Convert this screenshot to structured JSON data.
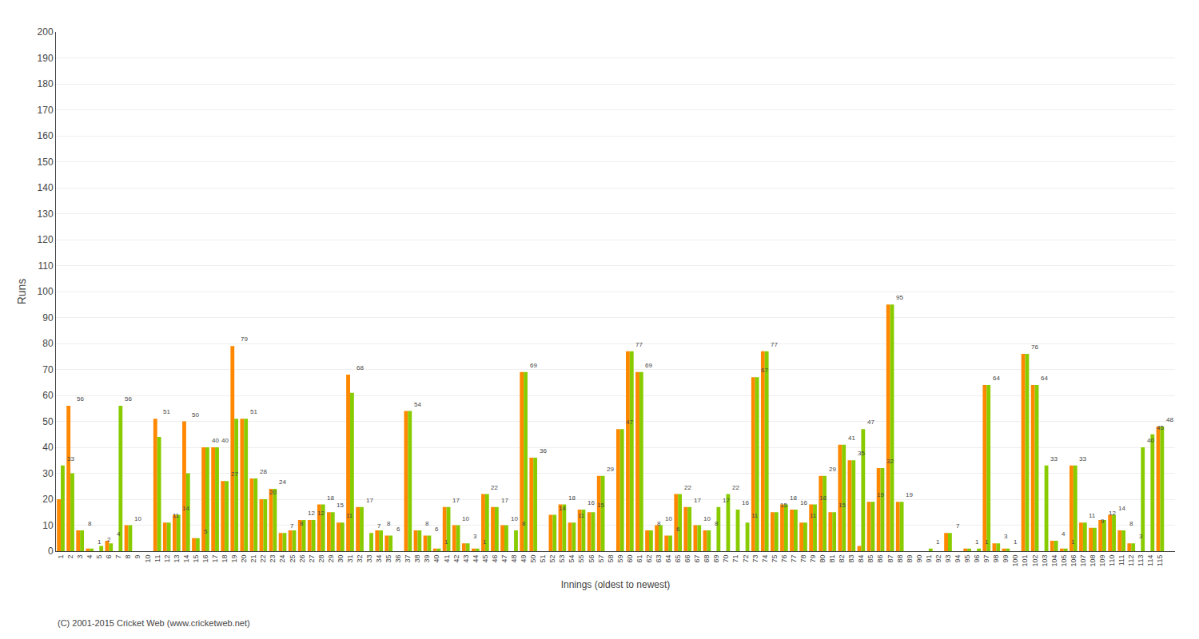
{
  "chart_data": {
    "type": "bar",
    "xlabel": "Innings (oldest to newest)",
    "ylabel": "Runs",
    "categories": [
      "1",
      "2",
      "3",
      "4",
      "5",
      "6",
      "7",
      "8",
      "9",
      "10",
      "11",
      "12",
      "13",
      "14",
      "15",
      "16",
      "17",
      "18",
      "19",
      "20",
      "21",
      "22",
      "23",
      "24",
      "25",
      "26",
      "27",
      "28",
      "29",
      "30",
      "31",
      "32",
      "33",
      "34",
      "35",
      "36",
      "37",
      "38",
      "39",
      "40",
      "41",
      "42",
      "43",
      "44",
      "45",
      "46",
      "47",
      "48",
      "49",
      "50",
      "51",
      "52",
      "53",
      "54",
      "55",
      "56",
      "57",
      "58",
      "59",
      "60",
      "61",
      "62",
      "63",
      "64",
      "65",
      "66",
      "67",
      "68",
      "69",
      "70",
      "71",
      "72",
      "73",
      "74",
      "75",
      "76",
      "77",
      "78",
      "79",
      "80",
      "81",
      "82",
      "83",
      "84",
      "85",
      "86",
      "87",
      "88",
      "89",
      "90",
      "91",
      "92",
      "93",
      "94",
      "95",
      "96",
      "97",
      "98",
      "99",
      "100",
      "101",
      "102",
      "103",
      "104",
      "105",
      "106",
      "107",
      "108",
      "109",
      "110",
      "111",
      "112",
      "113",
      "114",
      "115"
    ],
    "series": [
      {
        "color": "#ff8800",
        "values": [
          20,
          56,
          8,
          1,
          0,
          4,
          0,
          10,
          0,
          0,
          51,
          11,
          14,
          50,
          5,
          40,
          40,
          27,
          79,
          51,
          28,
          20,
          24,
          7,
          8,
          12,
          12,
          18,
          15,
          11,
          68,
          17,
          0,
          8,
          6,
          0,
          54,
          8,
          6,
          1,
          17,
          10,
          3,
          1,
          22,
          17,
          10,
          0,
          69,
          36,
          0,
          14,
          18,
          11,
          16,
          15,
          29,
          0,
          47,
          77,
          69,
          8,
          10,
          6,
          22,
          17,
          10,
          8,
          0,
          0,
          0,
          0,
          67,
          77,
          15,
          18,
          16,
          11,
          18,
          29,
          15,
          41,
          35,
          2,
          19,
          32,
          95,
          19,
          0,
          0,
          0,
          0,
          7,
          0,
          1,
          0,
          64,
          3,
          1,
          0,
          76,
          64,
          0,
          4,
          1,
          33,
          11,
          9,
          12,
          14,
          8,
          3,
          0,
          0,
          48
        ]
      },
      {
        "color": "#88cc00",
        "values": [
          33,
          30,
          8,
          1,
          2,
          3,
          56,
          10,
          0,
          0,
          44,
          11,
          14,
          30,
          5,
          40,
          40,
          27,
          51,
          51,
          28,
          20,
          24,
          7,
          8,
          12,
          12,
          18,
          15,
          11,
          61,
          17,
          7,
          8,
          6,
          0,
          54,
          8,
          6,
          1,
          17,
          10,
          3,
          1,
          22,
          17,
          10,
          8,
          69,
          36,
          0,
          14,
          18,
          11,
          16,
          15,
          29,
          0,
          47,
          77,
          69,
          8,
          10,
          6,
          22,
          17,
          10,
          8,
          17,
          22,
          16,
          11,
          67,
          77,
          15,
          18,
          16,
          11,
          18,
          29,
          15,
          41,
          35,
          47,
          19,
          32,
          95,
          19,
          0,
          0,
          1,
          0,
          7,
          0,
          1,
          1,
          64,
          3,
          1,
          0,
          76,
          64,
          33,
          4,
          1,
          33,
          11,
          9,
          12,
          14,
          8,
          3,
          40,
          45,
          48
        ]
      }
    ],
    "ylim": [
      0,
      200
    ],
    "yticks": [
      0,
      10,
      20,
      30,
      40,
      50,
      60,
      70,
      80,
      90,
      100,
      110,
      120,
      130,
      140,
      150,
      160,
      170,
      180,
      190,
      200
    ],
    "grid": true,
    "annotations": [
      {
        "text": "(C) 2001-2015 Cricket Web (www.cricketweb.net)"
      },
      {
        "category": "1",
        "text": "33"
      },
      {
        "category": "2",
        "text": "56"
      },
      {
        "category": "3",
        "text": "8"
      },
      {
        "category": "4",
        "text": "1"
      },
      {
        "category": "5",
        "text": "2"
      },
      {
        "category": "6",
        "text": "4"
      },
      {
        "category": "7",
        "text": "56"
      },
      {
        "category": "8",
        "text": "10"
      },
      {
        "category": "11",
        "text": "51"
      },
      {
        "category": "12",
        "text": "11"
      },
      {
        "category": "13",
        "text": "14"
      },
      {
        "category": "14",
        "text": "50"
      },
      {
        "category": "15",
        "text": "5"
      },
      {
        "category": "16",
        "text": "40"
      },
      {
        "category": "17",
        "text": "40"
      },
      {
        "category": "18",
        "text": "27"
      },
      {
        "category": "19",
        "text": "79"
      },
      {
        "category": "20",
        "text": "51"
      },
      {
        "category": "21",
        "text": "28"
      },
      {
        "category": "22",
        "text": "20"
      },
      {
        "category": "23",
        "text": "24"
      },
      {
        "category": "24",
        "text": "7"
      },
      {
        "category": "25",
        "text": "8"
      },
      {
        "category": "26",
        "text": "12"
      },
      {
        "category": "27",
        "text": "12"
      },
      {
        "category": "28",
        "text": "18"
      },
      {
        "category": "29",
        "text": "15"
      },
      {
        "category": "30",
        "text": "11"
      },
      {
        "category": "31",
        "text": "68"
      },
      {
        "category": "32",
        "text": "17"
      },
      {
        "category": "33",
        "text": "7"
      },
      {
        "category": "34",
        "text": "8"
      },
      {
        "category": "35",
        "text": "6"
      },
      {
        "category": "37",
        "text": "54"
      },
      {
        "category": "38",
        "text": "8"
      },
      {
        "category": "39",
        "text": "6"
      },
      {
        "category": "40",
        "text": "1"
      },
      {
        "category": "41",
        "text": "17"
      },
      {
        "category": "42",
        "text": "10"
      },
      {
        "category": "43",
        "text": "3"
      },
      {
        "category": "44",
        "text": "1"
      },
      {
        "category": "45",
        "text": "22"
      },
      {
        "category": "46",
        "text": "17"
      },
      {
        "category": "47",
        "text": "10"
      },
      {
        "category": "48",
        "text": "8"
      },
      {
        "category": "49",
        "text": "69"
      },
      {
        "category": "50",
        "text": "36"
      },
      {
        "category": "52",
        "text": "14"
      },
      {
        "category": "53",
        "text": "18"
      },
      {
        "category": "54",
        "text": "11"
      },
      {
        "category": "55",
        "text": "16"
      },
      {
        "category": "56",
        "text": "15"
      },
      {
        "category": "57",
        "text": "29"
      },
      {
        "category": "59",
        "text": "47"
      },
      {
        "category": "60",
        "text": "77"
      },
      {
        "category": "61",
        "text": "69"
      },
      {
        "category": "62",
        "text": "8"
      },
      {
        "category": "63",
        "text": "10"
      },
      {
        "category": "64",
        "text": "6"
      },
      {
        "category": "65",
        "text": "22"
      },
      {
        "category": "66",
        "text": "17"
      },
      {
        "category": "67",
        "text": "10"
      },
      {
        "category": "68",
        "text": "8"
      },
      {
        "category": "69",
        "text": "17"
      },
      {
        "category": "70",
        "text": "22"
      },
      {
        "category": "71",
        "text": "16"
      },
      {
        "category": "72",
        "text": "11"
      },
      {
        "category": "73",
        "text": "67"
      },
      {
        "category": "74",
        "text": "77"
      },
      {
        "category": "75",
        "text": "15"
      },
      {
        "category": "76",
        "text": "18"
      },
      {
        "category": "77",
        "text": "16"
      },
      {
        "category": "78",
        "text": "11"
      },
      {
        "category": "79",
        "text": "18"
      },
      {
        "category": "80",
        "text": "29"
      },
      {
        "category": "81",
        "text": "15"
      },
      {
        "category": "82",
        "text": "41"
      },
      {
        "category": "83",
        "text": "35"
      },
      {
        "category": "84",
        "text": "47"
      },
      {
        "category": "85",
        "text": "19"
      },
      {
        "category": "86",
        "text": "32"
      },
      {
        "category": "87",
        "text": "95"
      },
      {
        "category": "88",
        "text": "19"
      },
      {
        "category": "91",
        "text": "1"
      },
      {
        "category": "93",
        "text": "7"
      },
      {
        "category": "95",
        "text": "1"
      },
      {
        "category": "96",
        "text": "1"
      },
      {
        "category": "97",
        "text": "64"
      },
      {
        "category": "98",
        "text": "3"
      },
      {
        "category": "99",
        "text": "1"
      },
      {
        "category": "101",
        "text": "76"
      },
      {
        "category": "102",
        "text": "64"
      },
      {
        "category": "103",
        "text": "33"
      },
      {
        "category": "104",
        "text": "4"
      },
      {
        "category": "105",
        "text": "1"
      },
      {
        "category": "106",
        "text": "33"
      },
      {
        "category": "107",
        "text": "11"
      },
      {
        "category": "108",
        "text": "9"
      },
      {
        "category": "109",
        "text": "12"
      },
      {
        "category": "110",
        "text": "14"
      },
      {
        "category": "111",
        "text": "8"
      },
      {
        "category": "112",
        "text": "3"
      },
      {
        "category": "113",
        "text": "40"
      },
      {
        "category": "114",
        "text": "45"
      },
      {
        "category": "115",
        "text": "48"
      }
    ]
  }
}
